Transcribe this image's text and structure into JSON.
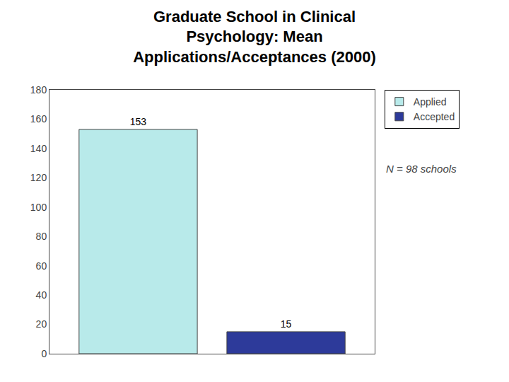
{
  "chart_data": {
    "type": "bar",
    "title": "Graduate School in Clinical\nPsychology: Mean\nApplications/Acceptances (2000)",
    "categories": [
      null,
      null
    ],
    "series": [
      {
        "name": "Applied",
        "color": "#b8eaea",
        "values": [
          153,
          null
        ]
      },
      {
        "name": "Accepted",
        "color": "#2d3a9a",
        "values": [
          null,
          15
        ]
      }
    ],
    "ylim": [
      0,
      180
    ],
    "yticks": [
      0,
      20,
      40,
      60,
      80,
      100,
      120,
      140,
      160,
      180
    ],
    "data_labels": true,
    "tick_labels": "y",
    "grid": false,
    "legend": "right",
    "annotation": "N = 98 schools"
  }
}
